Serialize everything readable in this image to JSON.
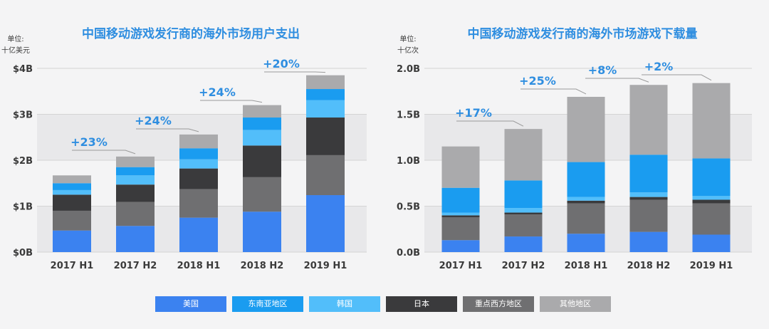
{
  "colors": {
    "background": "#f4f4f5",
    "band": "#e8e8ea",
    "gridline": "#d4d4d4",
    "title": "#2f8ee0",
    "annotation": "#2f8ee0",
    "axis_text": "#3a3a3a",
    "unit_text": "#3a3a3a"
  },
  "legend": [
    {
      "label": "美国",
      "color": "#3b82f0"
    },
    {
      "label": "东南亚地区",
      "color": "#1a9cf0"
    },
    {
      "label": "韩国",
      "color": "#52befa"
    },
    {
      "label": "日本",
      "color": "#3a3a3c"
    },
    {
      "label": "重点西方地区",
      "color": "#6f6f71"
    },
    {
      "label": "其他地区",
      "color": "#aaaaac"
    }
  ],
  "chart_data": [
    {
      "type": "bar",
      "stacked": true,
      "title": "中国移动游戏发行商的海外市场用户支出",
      "unit_label": [
        "单位:",
        "十亿美元"
      ],
      "categories": [
        "2017 H1",
        "2017 H2",
        "2018 H1",
        "2018 H2",
        "2019 H1"
      ],
      "ylim": [
        0,
        4
      ],
      "yticks": [
        0,
        1,
        2,
        3,
        4
      ],
      "ytick_labels": [
        "$0B",
        "$1B",
        "$2B",
        "$3B",
        "$4B"
      ],
      "series": [
        {
          "name": "美国",
          "values": [
            0.47,
            0.57,
            0.75,
            0.88,
            1.24
          ]
        },
        {
          "name": "重点西方地区",
          "values": [
            0.43,
            0.52,
            0.62,
            0.75,
            0.87
          ]
        },
        {
          "name": "日本",
          "values": [
            0.35,
            0.38,
            0.45,
            0.69,
            0.82
          ]
        },
        {
          "name": "韩国",
          "values": [
            0.1,
            0.2,
            0.2,
            0.34,
            0.38
          ]
        },
        {
          "name": "东南亚地区",
          "values": [
            0.15,
            0.18,
            0.24,
            0.27,
            0.24
          ]
        },
        {
          "name": "其他地区",
          "values": [
            0.17,
            0.23,
            0.3,
            0.27,
            0.3
          ]
        }
      ],
      "annotations": [
        {
          "text": "+23%",
          "between": [
            0,
            1
          ]
        },
        {
          "text": "+24%",
          "between": [
            1,
            2
          ]
        },
        {
          "text": "+24%",
          "between": [
            2,
            3
          ]
        },
        {
          "text": "+20%",
          "between": [
            3,
            4
          ]
        }
      ],
      "grid": true
    },
    {
      "type": "bar",
      "stacked": true,
      "title": "中国移动游戏发行商的海外市场游戏下载量",
      "unit_label": [
        "单位:",
        "十亿次"
      ],
      "categories": [
        "2017 H1",
        "2017 H2",
        "2018 H1",
        "2018 H2",
        "2019 H1"
      ],
      "ylim": [
        0,
        2
      ],
      "yticks": [
        0,
        0.5,
        1,
        1.5,
        2
      ],
      "ytick_labels": [
        "0.0B",
        "0.5B",
        "1.0B",
        "1.5B",
        "2.0B"
      ],
      "series": [
        {
          "name": "美国",
          "values": [
            0.13,
            0.17,
            0.2,
            0.22,
            0.19
          ]
        },
        {
          "name": "重点西方地区",
          "values": [
            0.25,
            0.24,
            0.33,
            0.35,
            0.34
          ]
        },
        {
          "name": "日本",
          "values": [
            0.02,
            0.02,
            0.03,
            0.03,
            0.04
          ]
        },
        {
          "name": "韩国",
          "values": [
            0.03,
            0.05,
            0.04,
            0.05,
            0.04
          ]
        },
        {
          "name": "东南亚地区",
          "values": [
            0.27,
            0.3,
            0.38,
            0.41,
            0.41
          ]
        },
        {
          "name": "其他地区",
          "values": [
            0.45,
            0.56,
            0.71,
            0.76,
            0.82
          ]
        }
      ],
      "annotations": [
        {
          "text": "+17%",
          "between": [
            0,
            1
          ]
        },
        {
          "text": "+25%",
          "between": [
            1,
            2
          ]
        },
        {
          "text": "+8%",
          "between": [
            2,
            3
          ]
        },
        {
          "text": "+2%",
          "between": [
            3,
            4
          ]
        }
      ],
      "grid": true
    }
  ]
}
